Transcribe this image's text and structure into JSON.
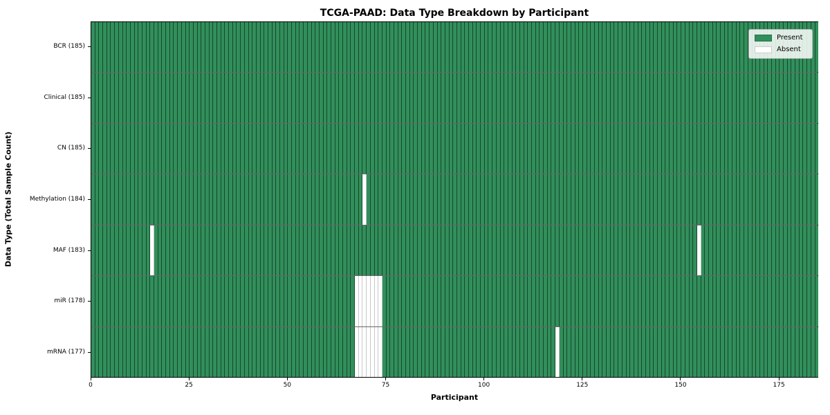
{
  "colors": {
    "present": "#318f5b",
    "absent": "#ffffff",
    "grid_on_present": "rgba(0,0,0,0.50)",
    "grid_on_absent": "rgba(0,0,0,0.22)",
    "row_separator": "rgba(0,0,0,0.60)",
    "plot_border": "#000000",
    "legend_background": "rgba(255,255,255,0.85)",
    "legend_border": "#b5b5b5"
  },
  "chart_data": {
    "type": "heatmap",
    "title": "TCGA-PAAD: Data Type Breakdown by Participant",
    "xlabel": "Participant",
    "ylabel": "Data Type (Total Sample Count)",
    "legend_position": "upper right",
    "n_participants": 185,
    "xlim": [
      0,
      185
    ],
    "xticks": [
      0,
      25,
      50,
      75,
      100,
      125,
      150,
      175
    ],
    "rows": [
      {
        "id": "bcr",
        "label": "BCR (185)",
        "total": 185,
        "absent_participants": []
      },
      {
        "id": "clinical",
        "label": "Clinical (185)",
        "total": 185,
        "absent_participants": []
      },
      {
        "id": "cn",
        "label": "CN (185)",
        "total": 185,
        "absent_participants": []
      },
      {
        "id": "methylation",
        "label": "Methylation (184)",
        "total": 184,
        "absent_participants": [
          69
        ]
      },
      {
        "id": "maf",
        "label": "MAF (183)",
        "total": 183,
        "absent_participants": [
          15,
          154
        ]
      },
      {
        "id": "mir",
        "label": "miR (178)",
        "total": 178,
        "absent_participants": [
          67,
          68,
          69,
          70,
          71,
          72,
          73
        ]
      },
      {
        "id": "mrna",
        "label": "mRNA (177)",
        "total": 177,
        "absent_participants": [
          67,
          68,
          69,
          70,
          71,
          72,
          73,
          118
        ]
      }
    ],
    "legend": [
      {
        "id": "present",
        "label": "Present",
        "color": "#318f5b"
      },
      {
        "id": "absent",
        "label": "Absent",
        "color": "#ffffff"
      }
    ]
  }
}
